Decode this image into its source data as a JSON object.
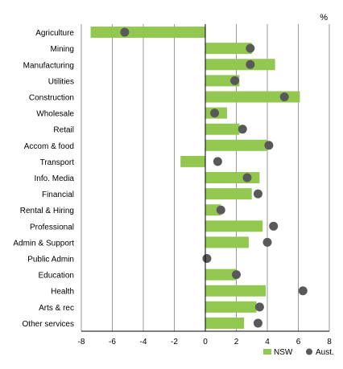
{
  "chart_data": {
    "type": "bar",
    "unit_label": "%",
    "categories": [
      "Agriculture",
      "Mining",
      "Manufacturing",
      "Utilities",
      "Construction",
      "Wholesale",
      "Retail",
      "Accom & food",
      "Transport",
      "Info. Media",
      "Financial",
      "Rental & Hiring",
      "Professional",
      "Admin & Support",
      "Public Admin",
      "Education",
      "Health",
      "Arts & rec",
      "Other services"
    ],
    "series": [
      {
        "name": "NSW",
        "type": "bar",
        "color": "#92c850",
        "values": [
          -7.4,
          3.0,
          4.5,
          2.2,
          6.1,
          1.4,
          2.2,
          4.0,
          -1.6,
          3.5,
          3.0,
          1.0,
          3.7,
          2.8,
          0.0,
          2.0,
          3.9,
          3.3,
          2.5
        ]
      },
      {
        "name": "Aust.",
        "type": "dot",
        "color": "#595959",
        "values": [
          -5.2,
          2.9,
          2.9,
          1.9,
          5.1,
          0.6,
          2.4,
          4.1,
          0.8,
          2.7,
          3.4,
          1.0,
          4.4,
          4.0,
          0.1,
          2.0,
          6.3,
          3.5,
          3.4
        ]
      }
    ],
    "xlim": [
      -8,
      8
    ],
    "xticks": [
      "-8",
      "-6",
      "-4",
      "-2",
      "0",
      "2",
      "4",
      "6",
      "8"
    ],
    "grid": true,
    "legend": "bottom-right"
  }
}
